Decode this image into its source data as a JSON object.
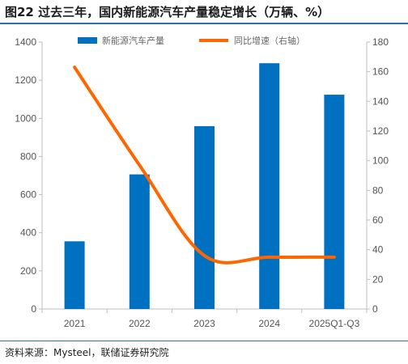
{
  "header": {
    "title": "图22 过去三年，国内新能源汽车产量稳定增长（万辆、%）"
  },
  "footer": {
    "source": "资料来源：Mysteel，联储证券研究院"
  },
  "colors": {
    "bar": "#0070c0",
    "line": "#ff6600",
    "rule": "#2f6fb2"
  },
  "chart_data": {
    "type": "bar",
    "categories": [
      "2021",
      "2022",
      "2023",
      "2024",
      "2025Q1-Q3"
    ],
    "series": [
      {
        "name": "新能源汽车产量",
        "type": "bar",
        "axis": "left",
        "values": [
          355,
          706,
          959,
          1289,
          1124
        ]
      },
      {
        "name": "同比增速（右轴）",
        "type": "line",
        "axis": "right",
        "values": [
          163,
          97,
          36,
          35,
          35
        ]
      }
    ],
    "y_left": {
      "min": 0,
      "max": 1400,
      "ticks": [
        "0",
        "200",
        "400",
        "600",
        "800",
        "1000",
        "1200",
        "1400"
      ]
    },
    "y_right": {
      "min": 0,
      "max": 180,
      "ticks": [
        "0",
        "20",
        "40",
        "60",
        "80",
        "100",
        "120",
        "140",
        "160",
        "180"
      ]
    },
    "grid": false,
    "legend_position": "top"
  }
}
